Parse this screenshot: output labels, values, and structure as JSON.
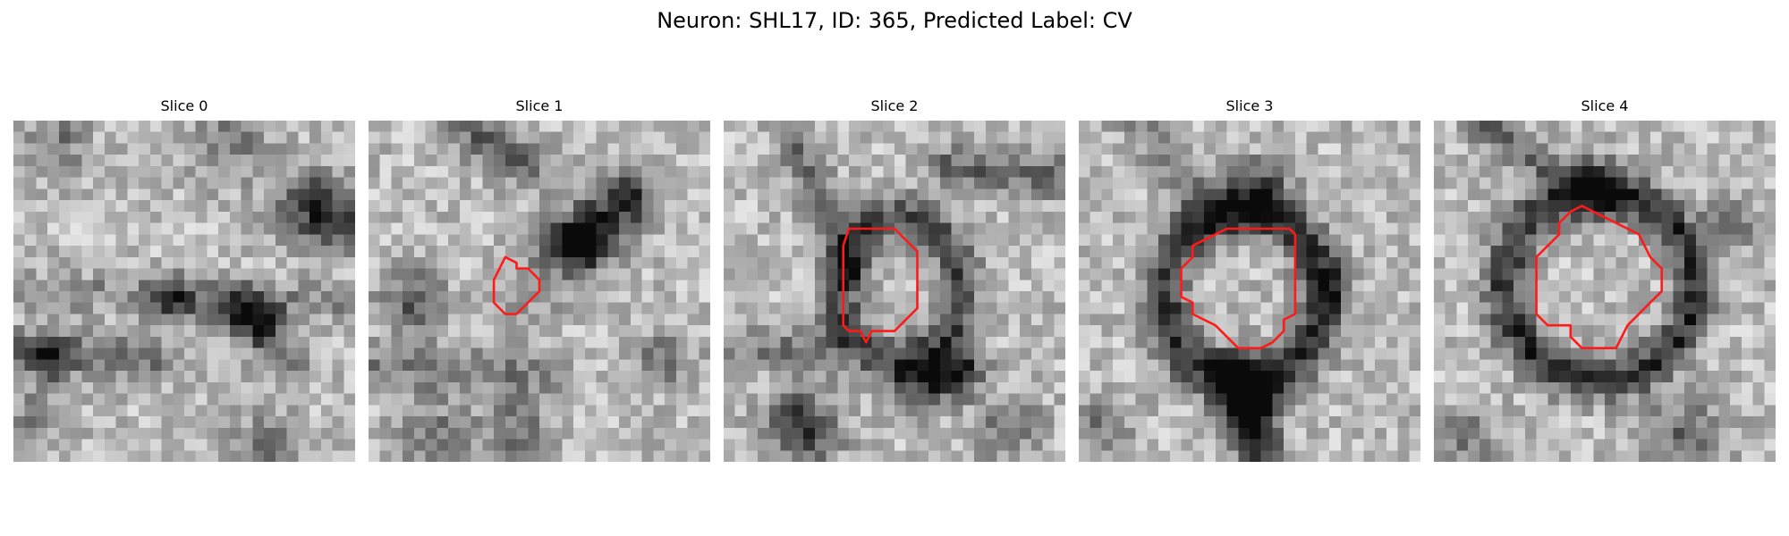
{
  "title": "Neuron: SHL17, ID: 365, Predicted Label: CV",
  "contour_color": "#ff1a1a",
  "colormap": "gray",
  "panels": [
    {
      "title": "Slice 0",
      "contour": false,
      "features": []
    },
    {
      "title": "Slice 1",
      "contour": true,
      "features": []
    },
    {
      "title": "Slice 2",
      "contour": true,
      "features": []
    },
    {
      "title": "Slice 3",
      "contour": true,
      "features": []
    },
    {
      "title": "Slice 4",
      "contour": true,
      "features": []
    }
  ]
}
